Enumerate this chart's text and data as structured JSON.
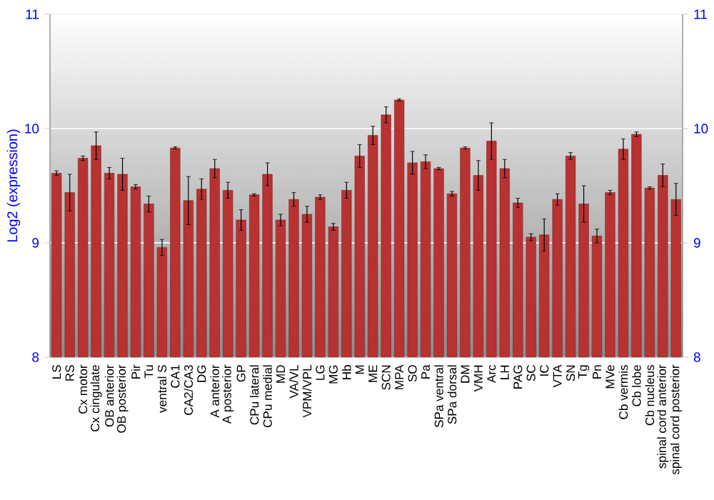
{
  "chart_data": {
    "type": "bar",
    "ylabel": "Log2 (expression)",
    "categories": [
      "LS",
      "RS",
      "Cx motor",
      "Cx cingulate",
      "OB anterior",
      "OB posterior",
      "Pir",
      "Tu",
      "ventral S",
      "CA1",
      "CA2/CA3",
      "DG",
      "A anterior",
      "A posterior",
      "GP",
      "CPu lateral",
      "CPu medial",
      "MD",
      "VA/VL",
      "VPM/VPL",
      "LG",
      "MG",
      "Hb",
      "M",
      "ME",
      "SCN",
      "MPA",
      "SO",
      "Pa",
      "SPa ventral",
      "SPa dorsal",
      "DM",
      "VMH",
      "Arc",
      "LH",
      "PAG",
      "SC",
      "IC",
      "VTA",
      "SN",
      "Tg",
      "Pn",
      "MVe",
      "Cb vermis",
      "Cb lobe",
      "Cb nucleus",
      "spinal cord anterior",
      "spinal cord posterior"
    ],
    "values": [
      9.61,
      9.44,
      9.74,
      9.85,
      9.61,
      9.6,
      9.49,
      9.34,
      8.96,
      9.83,
      9.37,
      9.47,
      9.65,
      9.46,
      9.2,
      9.42,
      9.6,
      9.2,
      9.38,
      9.25,
      9.4,
      9.14,
      9.46,
      9.76,
      9.94,
      10.12,
      10.25,
      9.7,
      9.71,
      9.65,
      9.43,
      9.83,
      9.59,
      9.89,
      9.65,
      9.35,
      9.05,
      9.07,
      9.38,
      9.76,
      9.34,
      9.06,
      9.44,
      9.82,
      9.95,
      9.48,
      9.59,
      9.38
    ],
    "errors": [
      0.02,
      0.16,
      0.02,
      0.12,
      0.05,
      0.14,
      0.02,
      0.07,
      0.07,
      0.01,
      0.21,
      0.09,
      0.08,
      0.07,
      0.09,
      0.01,
      0.1,
      0.05,
      0.06,
      0.07,
      0.02,
      0.03,
      0.07,
      0.1,
      0.08,
      0.07,
      0.01,
      0.1,
      0.06,
      0.01,
      0.02,
      0.01,
      0.13,
      0.16,
      0.08,
      0.04,
      0.03,
      0.14,
      0.05,
      0.03,
      0.16,
      0.06,
      0.02,
      0.09,
      0.02,
      0.01,
      0.1,
      0.14
    ],
    "color": "#b83232",
    "ylim": [
      8,
      11
    ],
    "yticks": [
      8,
      9,
      10,
      11
    ],
    "y2lim": [
      8,
      11
    ],
    "y2ticks": [
      8,
      9,
      10,
      11
    ],
    "grid": "y"
  }
}
